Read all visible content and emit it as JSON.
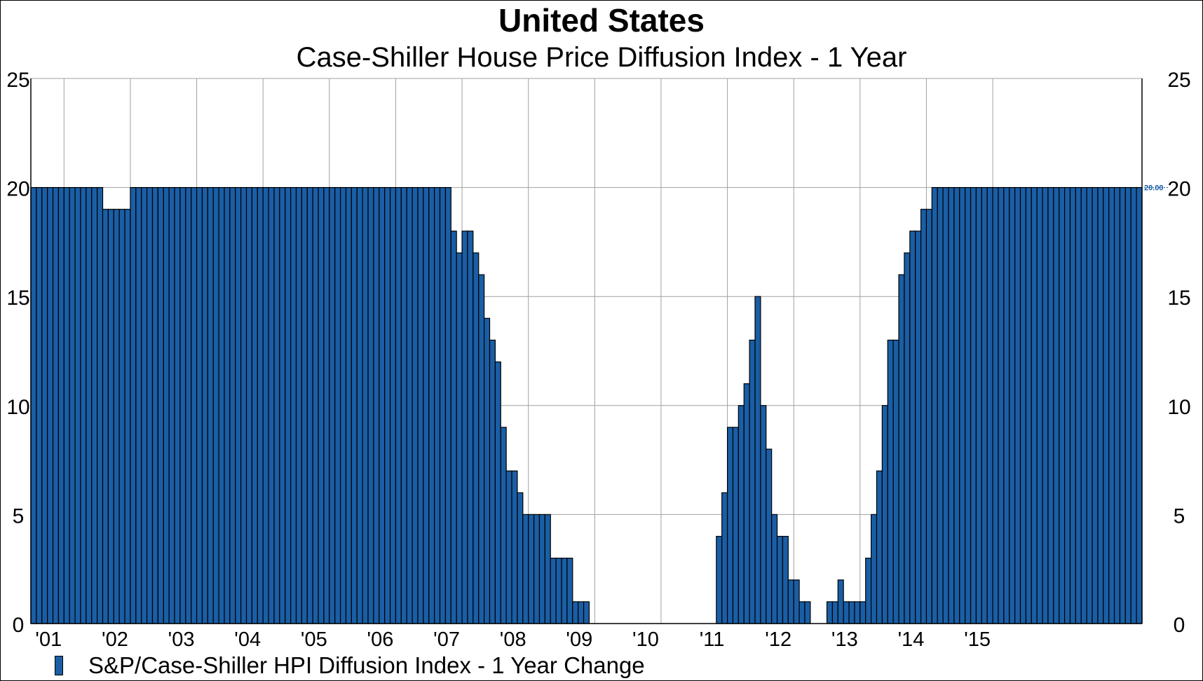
{
  "chart_data": {
    "type": "bar",
    "title": "United States",
    "subtitle": "Case-Shiller House Price Diffusion Index - 1 Year",
    "xlabel": "",
    "ylabel": "",
    "ylim": [
      0,
      25
    ],
    "y_ticks": [
      0,
      5,
      10,
      15,
      20,
      25
    ],
    "y_tick_labels": [
      "0",
      "5",
      "10",
      "15",
      "20",
      "25"
    ],
    "x_tick_labels": [
      "'01",
      "'02",
      "'03",
      "'04",
      "'05",
      "'06",
      "'07",
      "'08",
      "'09",
      "'10",
      "'11",
      "'12",
      "'13",
      "'14",
      "'15"
    ],
    "x_start_year": 2000,
    "x_start_month": 7,
    "frequency": "monthly",
    "grid": true,
    "legend_position": "bottom-left",
    "last_value_label": "20.00",
    "colors": {
      "bar": "#1a5ea5",
      "bar_edge": "#000000",
      "grid": "#a0a0a0",
      "last_label": "#1a5ea5"
    },
    "series": [
      {
        "name": "S&P/Case-Shiller HPI Diffusion Index - 1 Year Change",
        "values": [
          20,
          20,
          20,
          20,
          20,
          20,
          20,
          20,
          20,
          20,
          20,
          20,
          20,
          19,
          19,
          19,
          19,
          19,
          20,
          20,
          20,
          20,
          20,
          20,
          20,
          20,
          20,
          20,
          20,
          20,
          20,
          20,
          20,
          20,
          20,
          20,
          20,
          20,
          20,
          20,
          20,
          20,
          20,
          20,
          20,
          20,
          20,
          20,
          20,
          20,
          20,
          20,
          20,
          20,
          20,
          20,
          20,
          20,
          20,
          20,
          20,
          20,
          20,
          20,
          20,
          20,
          20,
          20,
          20,
          20,
          20,
          20,
          20,
          20,
          20,
          20,
          18,
          17,
          18,
          18,
          17,
          16,
          14,
          13,
          12,
          9,
          7,
          7,
          6,
          5,
          5,
          5,
          5,
          5,
          3,
          3,
          3,
          3,
          1,
          1,
          1,
          0,
          0,
          0,
          0,
          0,
          0,
          0,
          0,
          0,
          0,
          0,
          0,
          0,
          0,
          0,
          0,
          0,
          0,
          0,
          0,
          0,
          0,
          0,
          4,
          6,
          9,
          9,
          10,
          11,
          13,
          15,
          10,
          8,
          5,
          4,
          4,
          2,
          2,
          1,
          1,
          0,
          0,
          0,
          1,
          1,
          2,
          1,
          1,
          1,
          1,
          3,
          5,
          7,
          10,
          13,
          13,
          16,
          17,
          18,
          18,
          19,
          19,
          20,
          20,
          20,
          20,
          20,
          20,
          20,
          20,
          20,
          20,
          20,
          20,
          20,
          20,
          20,
          20,
          20,
          20,
          20,
          20,
          20,
          20,
          20,
          20,
          20,
          20,
          20,
          20,
          20,
          20,
          20,
          20,
          20,
          20,
          20,
          20,
          20,
          20
        ]
      }
    ]
  }
}
